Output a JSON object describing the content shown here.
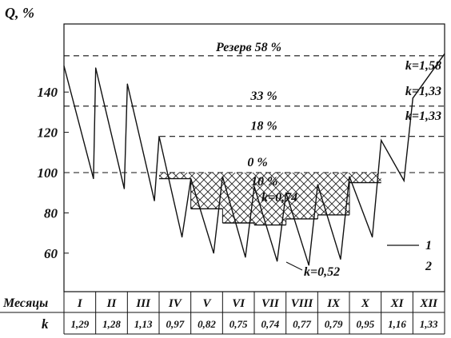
{
  "chart_data": {
    "type": "line",
    "ylabel": "Q, %",
    "yticks": [
      60,
      80,
      100,
      120,
      140
    ],
    "ylim": [
      45,
      166
    ],
    "reference_lines": [
      {
        "value": 158,
        "label": "Резерв 58 %",
        "k_label": "k=1,58"
      },
      {
        "value": 133,
        "label": "33 %",
        "k_label": "k=1,33"
      },
      {
        "value": 118,
        "label": "18 %",
        "k_label": ""
      },
      {
        "value": 100,
        "label": "0 %",
        "k_label": ""
      }
    ],
    "annotations": [
      {
        "text": "10 %"
      },
      {
        "text": "k=0,74"
      },
      {
        "text": "k=0,52"
      }
    ],
    "legend": [
      "1",
      "2"
    ],
    "table": {
      "row1_label": "Месяцы",
      "row2_label": "k",
      "months": [
        "I",
        "II",
        "III",
        "IV",
        "V",
        "VI",
        "VII",
        "VIII",
        "IX",
        "X",
        "XI",
        "XII"
      ],
      "k": [
        "1,29",
        "1,28",
        "1,13",
        "0,97",
        "0,82",
        "0,75",
        "0,74",
        "0,77",
        "0,79",
        "0,95",
        "1,16",
        "1,33"
      ]
    },
    "series": [
      {
        "x": [
          0,
          0.93,
          1.0,
          1.9,
          2.0,
          2.85,
          3.0,
          3.72,
          4.0,
          4.72,
          5.0,
          5.72,
          6.0,
          6.72,
          7.0,
          7.72,
          8.0,
          8.72,
          9.0,
          9.72,
          10.0,
          10.72,
          11.0,
          12.0
        ],
        "y": [
          153,
          97,
          152,
          92,
          144,
          86,
          118,
          68,
          97,
          60,
          98,
          58,
          93,
          56,
          90,
          54,
          94,
          57,
          98,
          68,
          116,
          96,
          137,
          159
        ]
      }
    ],
    "reserve_steps": [
      {
        "x0": 3.0,
        "x1": 4.0,
        "y": 97
      },
      {
        "x0": 4.0,
        "x1": 5.0,
        "y": 82
      },
      {
        "x0": 5.0,
        "x1": 6.0,
        "y": 75
      },
      {
        "x0": 6.0,
        "x1": 7.0,
        "y": 74
      },
      {
        "x0": 7.0,
        "x1": 8.0,
        "y": 77
      },
      {
        "x0": 8.0,
        "x1": 9.0,
        "y": 79
      },
      {
        "x0": 9.0,
        "x1": 10.0,
        "y": 95
      }
    ]
  }
}
